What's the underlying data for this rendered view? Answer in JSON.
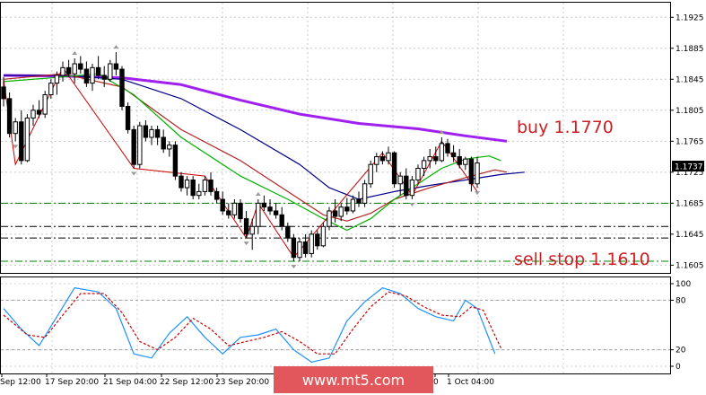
{
  "chart_data": [
    {
      "type": "candlestick",
      "title": "",
      "ylim": [
        1.1595,
        1.1945
      ],
      "y_ticks": [
        "1.1925",
        "1.1885",
        "1.1845",
        "1.1805",
        "1.1765",
        "1.1725",
        "1.1685",
        "1.1645",
        "1.1605"
      ],
      "current_price": "1.1737",
      "candles": [
        [
          1.1835,
          1.1848,
          1.181,
          1.182
        ],
        [
          1.182,
          1.1828,
          1.177,
          1.1775
        ],
        [
          1.1775,
          1.1795,
          1.1765,
          1.179
        ],
        [
          1.179,
          1.1805,
          1.1735,
          1.174
        ],
        [
          1.174,
          1.18,
          1.1738,
          1.1795
        ],
        [
          1.1795,
          1.1812,
          1.1785,
          1.1805
        ],
        [
          1.1805,
          1.1818,
          1.1795,
          1.18
        ],
        [
          1.18,
          1.183,
          1.1795,
          1.1825
        ],
        [
          1.1825,
          1.1845,
          1.182,
          1.184
        ],
        [
          1.184,
          1.1855,
          1.1825,
          1.185
        ],
        [
          1.185,
          1.1868,
          1.1842,
          1.186
        ],
        [
          1.186,
          1.187,
          1.1848,
          1.1852
        ],
        [
          1.1852,
          1.1872,
          1.184,
          1.1865
        ],
        [
          1.1865,
          1.1875,
          1.1852,
          1.1858
        ],
        [
          1.1858,
          1.1868,
          1.1835,
          1.184
        ],
        [
          1.184,
          1.1865,
          1.183,
          1.186
        ],
        [
          1.186,
          1.1875,
          1.1845,
          1.185
        ],
        [
          1.185,
          1.1862,
          1.1835,
          1.1845
        ],
        [
          1.1845,
          1.187,
          1.1842,
          1.1865
        ],
        [
          1.1865,
          1.188,
          1.185,
          1.1858
        ],
        [
          1.1858,
          1.1862,
          1.1805,
          1.181
        ],
        [
          1.181,
          1.1815,
          1.1775,
          1.178
        ],
        [
          1.178,
          1.1785,
          1.173,
          1.1735
        ],
        [
          1.1735,
          1.179,
          1.173,
          1.1785
        ],
        [
          1.1785,
          1.1792,
          1.1765,
          1.177
        ],
        [
          1.177,
          1.1785,
          1.176,
          1.178
        ],
        [
          1.178,
          1.1785,
          1.176,
          1.177
        ],
        [
          1.177,
          1.178,
          1.175,
          1.1755
        ],
        [
          1.1755,
          1.1765,
          1.1745,
          1.176
        ],
        [
          1.176,
          1.1765,
          1.1715,
          1.172
        ],
        [
          1.172,
          1.1725,
          1.17,
          1.1705
        ],
        [
          1.1705,
          1.172,
          1.1695,
          1.1715
        ],
        [
          1.1715,
          1.172,
          1.169,
          1.1695
        ],
        [
          1.1695,
          1.171,
          1.169,
          1.17
        ],
        [
          1.17,
          1.172,
          1.1695,
          1.1715
        ],
        [
          1.1715,
          1.1725,
          1.1695,
          1.17
        ],
        [
          1.17,
          1.1705,
          1.1685,
          1.169
        ],
        [
          1.169,
          1.17,
          1.167,
          1.1675
        ],
        [
          1.1675,
          1.1685,
          1.1665,
          1.167
        ],
        [
          1.167,
          1.169,
          1.1665,
          1.1685
        ],
        [
          1.1685,
          1.169,
          1.166,
          1.1665
        ],
        [
          1.1665,
          1.1675,
          1.164,
          1.1645
        ],
        [
          1.1645,
          1.1665,
          1.1625,
          1.1655
        ],
        [
          1.1655,
          1.169,
          1.1645,
          1.1685
        ],
        [
          1.1685,
          1.1695,
          1.1675,
          1.168
        ],
        [
          1.168,
          1.169,
          1.167,
          1.1675
        ],
        [
          1.1675,
          1.1685,
          1.1665,
          1.167
        ],
        [
          1.167,
          1.168,
          1.165,
          1.1655
        ],
        [
          1.1655,
          1.166,
          1.1635,
          1.164
        ],
        [
          1.164,
          1.1645,
          1.161,
          1.1615
        ],
        [
          1.1615,
          1.164,
          1.161,
          1.1635
        ],
        [
          1.1635,
          1.1645,
          1.1615,
          1.162
        ],
        [
          1.162,
          1.165,
          1.1615,
          1.1645
        ],
        [
          1.1645,
          1.165,
          1.1625,
          1.163
        ],
        [
          1.163,
          1.166,
          1.1628,
          1.1655
        ],
        [
          1.1655,
          1.168,
          1.165,
          1.1675
        ],
        [
          1.1675,
          1.169,
          1.166,
          1.1668
        ],
        [
          1.1668,
          1.1685,
          1.1662,
          1.168
        ],
        [
          1.168,
          1.1692,
          1.167,
          1.1675
        ],
        [
          1.1675,
          1.1695,
          1.1672,
          1.169
        ],
        [
          1.169,
          1.17,
          1.168,
          1.1685
        ],
        [
          1.1685,
          1.1715,
          1.168,
          1.171
        ],
        [
          1.171,
          1.174,
          1.1705,
          1.1735
        ],
        [
          1.1735,
          1.175,
          1.1725,
          1.1745
        ],
        [
          1.1745,
          1.1752,
          1.1735,
          1.174
        ],
        [
          1.174,
          1.1758,
          1.1735,
          1.175
        ],
        [
          1.175,
          1.1752,
          1.1705,
          1.171
        ],
        [
          1.171,
          1.1725,
          1.1695,
          1.172
        ],
        [
          1.172,
          1.173,
          1.169,
          1.1695
        ],
        [
          1.1695,
          1.172,
          1.169,
          1.1715
        ],
        [
          1.1715,
          1.1735,
          1.171,
          1.173
        ],
        [
          1.173,
          1.1745,
          1.172,
          1.174
        ],
        [
          1.174,
          1.1755,
          1.173,
          1.1745
        ],
        [
          1.1745,
          1.1758,
          1.1735,
          1.174
        ],
        [
          1.174,
          1.177,
          1.1738,
          1.1762
        ],
        [
          1.1762,
          1.1768,
          1.1745,
          1.175
        ],
        [
          1.175,
          1.176,
          1.1738,
          1.1745
        ],
        [
          1.1745,
          1.1755,
          1.173,
          1.1735
        ],
        [
          1.1735,
          1.1745,
          1.1728,
          1.1742
        ],
        [
          1.1742,
          1.1745,
          1.17,
          1.171
        ],
        [
          1.171,
          1.1745,
          1.1705,
          1.1737
        ]
      ],
      "series": [
        {
          "color": "#a020f0",
          "points": [
            [
              0,
              1.185
            ],
            [
              10,
              1.1849
            ],
            [
              20,
              1.1847
            ],
            [
              30,
              1.1838
            ],
            [
              40,
              1.1818
            ],
            [
              50,
              1.18
            ],
            [
              60,
              1.1788
            ],
            [
              70,
              1.1781
            ],
            [
              78,
              1.1772
            ],
            [
              85,
              1.1765
            ]
          ]
        },
        {
          "color": "#00008b",
          "points": [
            [
              0,
              1.185
            ],
            [
              10,
              1.185
            ],
            [
              20,
              1.1845
            ],
            [
              30,
              1.182
            ],
            [
              40,
              1.178
            ],
            [
              50,
              1.1735
            ],
            [
              55,
              1.1705
            ],
            [
              60,
              1.169
            ],
            [
              66,
              1.17
            ],
            [
              72,
              1.1708
            ],
            [
              78,
              1.1715
            ],
            [
              84,
              1.1722
            ],
            [
              88,
              1.1725
            ]
          ]
        },
        {
          "color": "#b22222",
          "points": [
            [
              0,
              1.1845
            ],
            [
              10,
              1.1852
            ],
            [
              20,
              1.1835
            ],
            [
              30,
              1.178
            ],
            [
              40,
              1.174
            ],
            [
              48,
              1.17
            ],
            [
              54,
              1.167
            ],
            [
              58,
              1.1662
            ],
            [
              62,
              1.1672
            ],
            [
              66,
              1.169
            ],
            [
              72,
              1.1705
            ],
            [
              78,
              1.1718
            ],
            [
              83,
              1.1728
            ],
            [
              85,
              1.1725
            ]
          ]
        },
        {
          "color": "#00b000",
          "points": [
            [
              0,
              1.1842
            ],
            [
              10,
              1.1848
            ],
            [
              16,
              1.1852
            ],
            [
              22,
              1.1825
            ],
            [
              30,
              1.177
            ],
            [
              40,
              1.172
            ],
            [
              48,
              1.169
            ],
            [
              54,
              1.1665
            ],
            [
              58,
              1.165
            ],
            [
              62,
              1.1665
            ],
            [
              66,
              1.169
            ],
            [
              70,
              1.171
            ],
            [
              74,
              1.173
            ],
            [
              78,
              1.1742
            ],
            [
              82,
              1.1746
            ],
            [
              84,
              1.174
            ]
          ]
        }
      ],
      "zigzag": [
        [
          0,
          1.1845
        ],
        [
          2,
          1.1735
        ],
        [
          10,
          1.186
        ],
        [
          22,
          1.173
        ],
        [
          34,
          1.172
        ],
        [
          41,
          1.164
        ],
        [
          43,
          1.1685
        ],
        [
          49,
          1.1615
        ],
        [
          64,
          1.175
        ],
        [
          69,
          1.1695
        ],
        [
          74,
          1.1765
        ],
        [
          80,
          1.17
        ]
      ],
      "fractal_up": [
        12,
        19,
        43,
        74
      ],
      "fractal_down": [
        2,
        22,
        41,
        49,
        69,
        80
      ],
      "h_lines": [
        {
          "price": 1.1685,
          "color": "#008000",
          "style": "dash-dot"
        },
        {
          "price": 1.1655,
          "color": "#000000",
          "style": "dash-dot"
        },
        {
          "price": 1.164,
          "color": "#000000",
          "style": "dash-dot"
        },
        {
          "price": 1.161,
          "color": "#008000",
          "style": "dash-dot"
        }
      ],
      "annotations": [
        "buy 1.1770",
        "sell stop 1.1610"
      ]
    },
    {
      "type": "line",
      "indicator": "stochastic",
      "ylim": [
        0,
        100
      ],
      "y_ticks": [
        "100",
        "80",
        "20",
        "0"
      ],
      "levels": [
        80,
        20
      ],
      "series": [
        {
          "color": "#1e90ff",
          "style": "solid",
          "points": [
            [
              0,
              70
            ],
            [
              3,
              45
            ],
            [
              6,
              25
            ],
            [
              9,
              60
            ],
            [
              12,
              95
            ],
            [
              16,
              90
            ],
            [
              19,
              70
            ],
            [
              22,
              15
            ],
            [
              25,
              10
            ],
            [
              28,
              40
            ],
            [
              31,
              60
            ],
            [
              34,
              35
            ],
            [
              37,
              15
            ],
            [
              40,
              35
            ],
            [
              43,
              38
            ],
            [
              46,
              45
            ],
            [
              49,
              20
            ],
            [
              52,
              5
            ],
            [
              55,
              10
            ],
            [
              58,
              55
            ],
            [
              61,
              78
            ],
            [
              64,
              95
            ],
            [
              67,
              88
            ],
            [
              70,
              70
            ],
            [
              73,
              60
            ],
            [
              76,
              55
            ],
            [
              78,
              80
            ],
            [
              80,
              70
            ],
            [
              83,
              15
            ]
          ]
        },
        {
          "color": "#cc0000",
          "style": "dashed",
          "points": [
            [
              0,
              62
            ],
            [
              4,
              38
            ],
            [
              7,
              35
            ],
            [
              10,
              62
            ],
            [
              13,
              88
            ],
            [
              17,
              88
            ],
            [
              20,
              65
            ],
            [
              23,
              30
            ],
            [
              26,
              20
            ],
            [
              29,
              35
            ],
            [
              32,
              58
            ],
            [
              35,
              45
            ],
            [
              38,
              25
            ],
            [
              41,
              30
            ],
            [
              44,
              35
            ],
            [
              47,
              42
            ],
            [
              50,
              30
            ],
            [
              53,
              15
            ],
            [
              56,
              15
            ],
            [
              59,
              45
            ],
            [
              62,
              72
            ],
            [
              65,
              90
            ],
            [
              68,
              85
            ],
            [
              71,
              72
            ],
            [
              74,
              62
            ],
            [
              77,
              60
            ],
            [
              79,
              72
            ],
            [
              81,
              68
            ],
            [
              84,
              22
            ]
          ]
        }
      ],
      "x_ticks": [
        "Sep 12:00",
        "17 Sep 20:00",
        "21 Sep 04:00",
        "22 Sep 12:00",
        "23 Sep 20:00",
        "0",
        "1 Oct 04:00"
      ]
    }
  ],
  "watermark": "www.mt5.com"
}
